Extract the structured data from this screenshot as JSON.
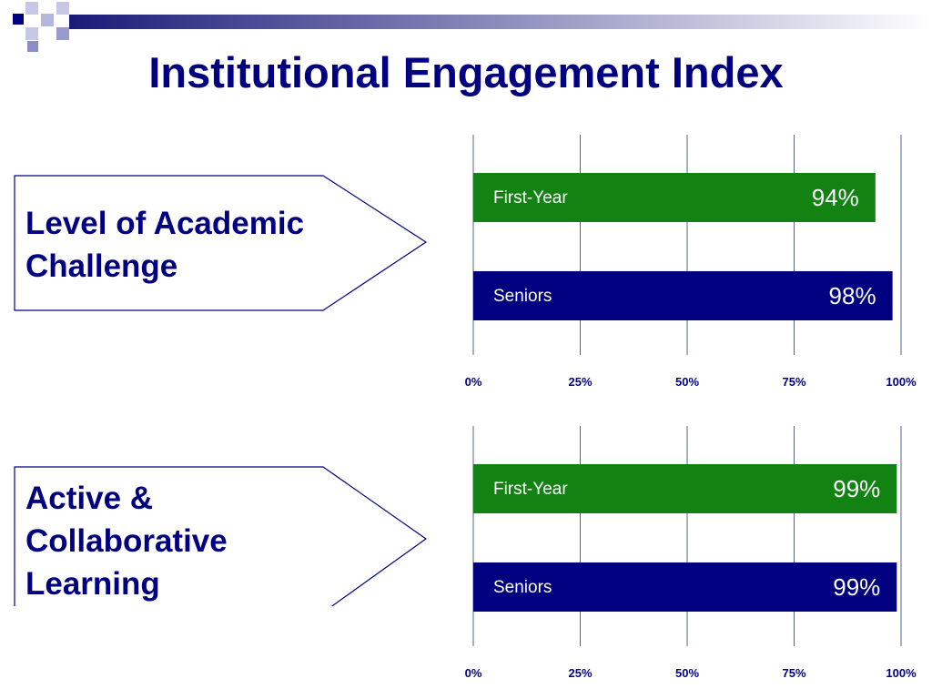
{
  "title": "Institutional Engagement Index",
  "colors": {
    "title": "#000080",
    "first_year": "#128312",
    "seniors": "#000080",
    "grid": "#5a6380",
    "accent": "#000080"
  },
  "sections": [
    {
      "label_lines": [
        "Level of Academic",
        "Challenge"
      ]
    },
    {
      "label_lines": [
        "Active &",
        "Collaborative",
        "Learning"
      ]
    }
  ],
  "chart_data": [
    {
      "type": "bar",
      "orientation": "horizontal",
      "categories": [
        "First-Year",
        "Seniors"
      ],
      "values": [
        94,
        98
      ],
      "value_labels": [
        "94%",
        "98%"
      ],
      "xlim": [
        0,
        100
      ],
      "xticks": [
        "0%",
        "25%",
        "50%",
        "75%",
        "100%"
      ],
      "grid": true
    },
    {
      "type": "bar",
      "orientation": "horizontal",
      "categories": [
        "First-Year",
        "Seniors"
      ],
      "values": [
        99,
        99
      ],
      "value_labels": [
        "99%",
        "99%"
      ],
      "xlim": [
        0,
        100
      ],
      "xticks": [
        "0%",
        "25%",
        "50%",
        "75%",
        "100%"
      ],
      "grid": true
    }
  ]
}
